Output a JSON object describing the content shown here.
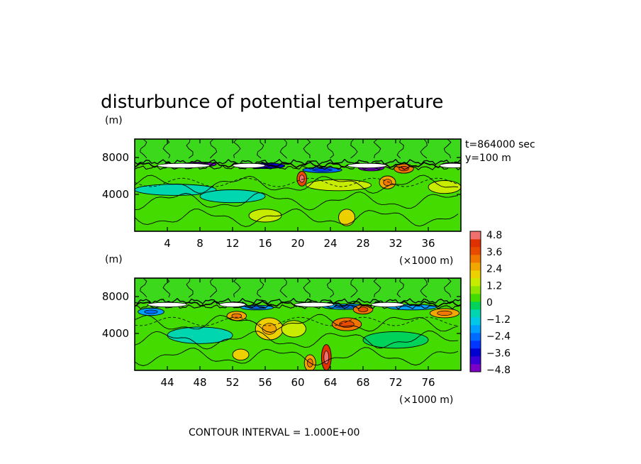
{
  "figure": {
    "title": "disturbunce of potential temperature",
    "time_label": "t=864000 sec",
    "position_label": "y=100 m",
    "contour_interval_label": "CONTOUR INTERVAL = 1.000E+00"
  },
  "chart_data": [
    {
      "type": "heatmap",
      "title": "disturbunce of potential temperature",
      "ylabel": "(m)",
      "xlabel": "(x1000 m)",
      "xlabel_display": "(×1000 m)",
      "xlim": [
        0,
        40
      ],
      "ylim": [
        0,
        10000
      ],
      "xticks": [
        "4",
        "8",
        "12",
        "16",
        "20",
        "24",
        "28",
        "32",
        "36"
      ],
      "xtick_values": [
        4,
        8,
        12,
        16,
        20,
        24,
        28,
        32,
        36
      ],
      "yticks": [
        "4000",
        "8000"
      ],
      "ytick_values": [
        4000,
        8000
      ],
      "features": [
        {
          "x": 8,
          "y": 7250,
          "w": 2.0,
          "h": 250,
          "v": -5.0
        },
        {
          "x": 16,
          "y": 7100,
          "w": 2.4,
          "h": 300,
          "v": -3.8
        },
        {
          "x": 23,
          "y": 6650,
          "w": 2.4,
          "h": 300,
          "v": -2.6
        },
        {
          "x": 29,
          "y": 6900,
          "w": 1.6,
          "h": 350,
          "v": -5.0
        },
        {
          "x": 39,
          "y": 7200,
          "w": 1.4,
          "h": 250,
          "v": -5.0
        },
        {
          "x": 20.5,
          "y": 5700,
          "w": 0.6,
          "h": 800,
          "v": 4.0
        },
        {
          "x": 33,
          "y": 6800,
          "w": 1.2,
          "h": 500,
          "v": 3.2
        },
        {
          "x": 31,
          "y": 5300,
          "w": 1.0,
          "h": 700,
          "v": 2.6
        },
        {
          "x": 5,
          "y": 4500,
          "w": 5.0,
          "h": 600,
          "v": -1.1
        },
        {
          "x": 25,
          "y": 5000,
          "w": 4.0,
          "h": 600,
          "v": 1.3
        },
        {
          "x": 26,
          "y": 1500,
          "w": 1.0,
          "h": 900,
          "v": 1.8
        },
        {
          "x": 16,
          "y": 1700,
          "w": 2.0,
          "h": 700,
          "v": 1.3
        },
        {
          "x": 38,
          "y": 4800,
          "w": 2.0,
          "h": 700,
          "v": 1.2
        },
        {
          "x": 12,
          "y": 3800,
          "w": 4.0,
          "h": 700,
          "v": -0.7
        }
      ]
    },
    {
      "type": "heatmap",
      "ylabel": "(m)",
      "xlabel": "(x1000 m)",
      "xlabel_display": "(×1000 m)",
      "xlim": [
        40,
        80
      ],
      "ylim": [
        0,
        10000
      ],
      "xticks": [
        "44",
        "48",
        "52",
        "56",
        "60",
        "64",
        "68",
        "72",
        "76"
      ],
      "xtick_values": [
        44,
        48,
        52,
        56,
        60,
        64,
        68,
        72,
        76
      ],
      "yticks": [
        "4000",
        "8000"
      ],
      "ytick_values": [
        4000,
        8000
      ],
      "features": [
        {
          "x": 42,
          "y": 6350,
          "w": 1.6,
          "h": 400,
          "v": -2.4
        },
        {
          "x": 55,
          "y": 6800,
          "w": 2.0,
          "h": 250,
          "v": -2.2
        },
        {
          "x": 66,
          "y": 6900,
          "w": 3.0,
          "h": 300,
          "v": -2.4
        },
        {
          "x": 74,
          "y": 6850,
          "w": 3.0,
          "h": 300,
          "v": -2.0
        },
        {
          "x": 52.5,
          "y": 5900,
          "w": 1.2,
          "h": 500,
          "v": 2.8
        },
        {
          "x": 56.5,
          "y": 4500,
          "w": 1.7,
          "h": 1200,
          "v": 2.3
        },
        {
          "x": 66,
          "y": 5000,
          "w": 1.8,
          "h": 700,
          "v": 3.0
        },
        {
          "x": 68,
          "y": 6600,
          "w": 1.2,
          "h": 500,
          "v": 3.2
        },
        {
          "x": 78,
          "y": 6200,
          "w": 1.8,
          "h": 500,
          "v": 2.6
        },
        {
          "x": 63.5,
          "y": 1400,
          "w": 0.6,
          "h": 1400,
          "v": 4.5
        },
        {
          "x": 61.5,
          "y": 800,
          "w": 0.7,
          "h": 900,
          "v": 2.8
        },
        {
          "x": 59.5,
          "y": 4500,
          "w": 1.5,
          "h": 900,
          "v": 1.3
        },
        {
          "x": 48,
          "y": 3800,
          "w": 4.0,
          "h": 900,
          "v": -0.7
        },
        {
          "x": 72,
          "y": 3300,
          "w": 4.0,
          "h": 900,
          "v": -0.6
        },
        {
          "x": 53,
          "y": 1700,
          "w": 1.0,
          "h": 600,
          "v": 1.8
        }
      ]
    }
  ],
  "colorbar": {
    "labels": [
      "4.8",
      "3.6",
      "2.4",
      "1.2",
      "0",
      "−1.2",
      "−2.4",
      "−3.6",
      "−4.8"
    ],
    "levels": [
      -5.4,
      -4.8,
      -4.2,
      -3.6,
      -3.0,
      -2.4,
      -1.8,
      -1.2,
      -0.6,
      0.0,
      0.6,
      1.2,
      1.8,
      2.4,
      3.0,
      3.6,
      4.2,
      4.8,
      5.4
    ],
    "colors": [
      "#7a00c8",
      "#3a00d8",
      "#0000d0",
      "#0036ff",
      "#006cff",
      "#00a0ff",
      "#00c8e6",
      "#00d6b0",
      "#00d25a",
      "#44dc00",
      "#8ee600",
      "#c8ec00",
      "#ecd000",
      "#f0a800",
      "#f07800",
      "#e84a00",
      "#e03000",
      "#f07070"
    ]
  }
}
